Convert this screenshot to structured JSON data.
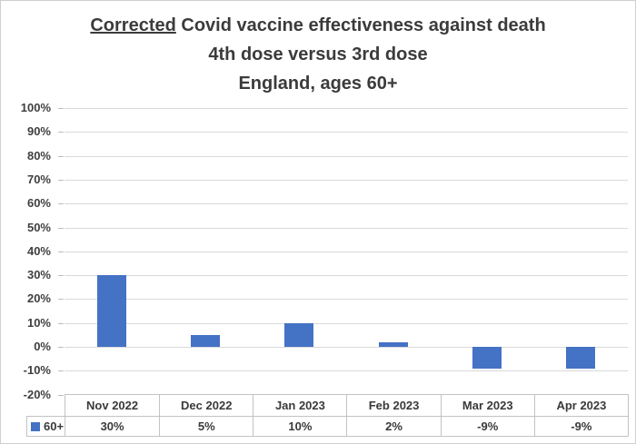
{
  "title": {
    "line1_underlined": "Corrected",
    "line1_rest": " Covid vaccine effectiveness against death",
    "line2": "4th dose versus 3rd dose",
    "line3": "England, ages 60+"
  },
  "chart_data": {
    "type": "bar",
    "title": "Corrected Covid vaccine effectiveness against death — 4th dose versus 3rd dose — England, ages 60+",
    "categories": [
      "Nov 2022",
      "Dec 2022",
      "Jan 2023",
      "Feb 2023",
      "Mar 2023",
      "Apr 2023"
    ],
    "series": [
      {
        "name": "60+",
        "values": [
          30,
          5,
          10,
          2,
          -9,
          -9
        ]
      }
    ],
    "value_labels": [
      "30%",
      "5%",
      "10%",
      "2%",
      "-9%",
      "-9%"
    ],
    "xlabel": "",
    "ylabel": "",
    "ylim": [
      -20,
      100
    ],
    "ytick_step": 10,
    "ytick_values": [
      100,
      90,
      80,
      70,
      60,
      50,
      40,
      30,
      20,
      10,
      0,
      -10,
      -20
    ],
    "ytick_labels": [
      "100%",
      "90%",
      "80%",
      "70%",
      "60%",
      "50%",
      "40%",
      "30%",
      "20%",
      "10%",
      "0%",
      "-10%",
      "-20%"
    ],
    "grid": true,
    "data_table_shown": true,
    "legend_position": "data-table-left",
    "bar_color": "#4472c4",
    "gridline_color": "#d9d9d9",
    "text_color": "#3b3b3b",
    "table_border_color": "#c3c3c3"
  }
}
